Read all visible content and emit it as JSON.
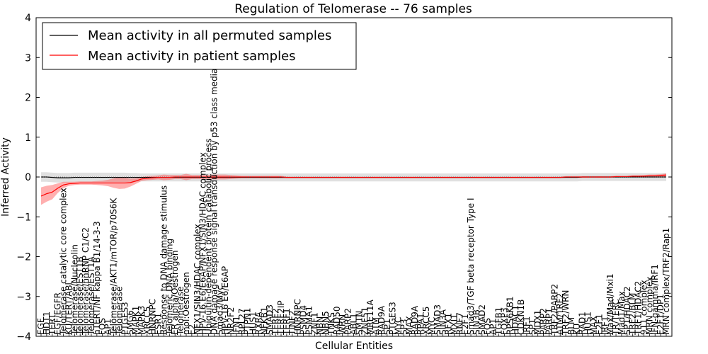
{
  "chart_data": {
    "type": "line",
    "title": "Regulation of Telomerase -- 76 samples",
    "xlabel": "Cellular Entities",
    "ylabel": "Inferred Activity",
    "ylim": [
      -4,
      4
    ],
    "yticks": [
      -4,
      -3,
      -2,
      -1,
      0,
      1,
      2,
      3,
      4
    ],
    "ytick_labels": [
      "−4",
      "−3",
      "−2",
      "−1",
      "0",
      "1",
      "2",
      "3",
      "4"
    ],
    "grid": false,
    "legend_position": "top-left",
    "series_colors": {
      "permuted": "#000000",
      "patient": "#ff0000",
      "permuted_band": "#bbbbbb",
      "patient_band": "#ff4d4d"
    },
    "categories": [
      "EGF",
      "HDT1",
      "TERT",
      "EGF/EGFR",
      "Telomerase catalytic core complex",
      "KU/TERT/ABl",
      "Telomerase/Nucleolin",
      "Telomerase/EST1B",
      "Telomerase/hnRNP C1/C2",
      "Telomerase/EST1A",
      "hTERT/NF kappa B1/14-3-3",
      "FOS",
      "AP1",
      "Telomerase/AKT1/mTOR/p70S6K",
      "Telomerase",
      "PTGES3",
      "SMG6",
      "MAPK1",
      "MAPK3",
      "XRCC5",
      "HNRNPC",
      "ESR1",
      "Response to DNA damage stimulus",
      "Telomeric DNA binding",
      "ER alpha/Oestrogen",
      "Telomerase",
      "mol:Oestrogen",
      "E2",
      "NFX1/SIN3/HDAC complex",
      "HPV-16 E6/E6AP/NFX1/SIN3/HDAC complex",
      "Ubiquitin-dependent protein catabolic process",
      "DNA damage response signal transduction by p53 class mediator",
      "Smad3/Myc",
      "HPV-16 E6/E6AP",
      "NR2F2",
      "IFN1",
      "RPL27",
      "PTPN1",
      "HUS1",
      "RXRA",
      "NFKB1",
      "SMAD3",
      "TERF2",
      "TERF2IP",
      "TERF1",
      "TINF2",
      "HNRNPC",
      "PSMD4",
      "PSMA1",
      "ZNF1",
      "NBN",
      "NBN5",
      "TNKS",
      "RAD50",
      "WRN",
      "PARP2",
      "ABL1",
      "SMTN",
      "ZNF51",
      "MRE11A",
      "ATM",
      "RAD9A",
      "SP1",
      "PTGES3",
      "MYC",
      "SP3",
      "MAX",
      "RAD9A",
      "RPA1",
      "XRCC5",
      "MYC",
      "SMAD3",
      "SIN3A",
      "RFX1",
      "MXI1",
      "RNF7",
      "E2F1",
      "Smad3/TGF beta receptor Type I",
      "SIN3B",
      "SMAD2",
      "FOS",
      "AP1",
      "TGFB1",
      "FOXP3",
      "RPS6KB1",
      "HDAC1",
      "CDKN1B",
      "IRF1",
      "SP1",
      "MDX1",
      "PARP2",
      "PARP1",
      "TRF2/PARP2",
      "ATM/TRF2",
      "TRF2/WRN",
      "BLM",
      "KU",
      "RAD1",
      "HUS1",
      "MAX",
      "E2F1",
      "IRF1",
      "Max/Mad/Mxi1",
      "TR/TERC",
      "Mad1/Max",
      "SP1/HDAC2",
      "TRF2/BLM",
      "TRF1/HDAC2",
      "911 complex",
      "MRN complex",
      "IFN-gamma/IRF1",
      "E2F1/DP1",
      "MRN complex/TRF2/Rap1"
    ],
    "series": [
      {
        "name": "Mean activity in all permuted samples",
        "values": [
          0.0,
          0.0,
          -0.01,
          -0.02,
          -0.02,
          -0.02,
          -0.01,
          -0.01,
          -0.01,
          -0.01,
          -0.01,
          -0.01,
          -0.01,
          -0.01,
          -0.01,
          -0.01,
          -0.01,
          -0.01,
          -0.01,
          -0.01,
          -0.01,
          -0.01,
          -0.01,
          -0.01,
          -0.01,
          -0.01,
          -0.01,
          -0.01,
          -0.01,
          -0.01,
          -0.01,
          -0.01,
          -0.01,
          -0.01,
          -0.01,
          -0.01,
          -0.01,
          -0.01,
          -0.01,
          -0.01,
          -0.01,
          -0.01,
          -0.01,
          -0.01,
          -0.01,
          -0.01,
          -0.01,
          -0.01,
          -0.01,
          -0.01,
          -0.01,
          -0.01,
          -0.01,
          -0.01,
          -0.01,
          -0.01,
          -0.01,
          -0.01,
          -0.01,
          -0.01,
          -0.01,
          -0.01,
          -0.01,
          -0.01,
          -0.01,
          -0.01,
          -0.01,
          -0.01,
          -0.01,
          -0.01,
          -0.01,
          -0.01,
          -0.01,
          -0.01,
          -0.01,
          -0.01,
          -0.01,
          -0.01,
          -0.01,
          -0.01,
          -0.01,
          -0.01,
          -0.01,
          -0.01,
          -0.01,
          -0.01,
          -0.01,
          -0.01,
          -0.01,
          -0.01,
          -0.01,
          -0.01,
          -0.01,
          -0.01,
          -0.01,
          -0.01,
          -0.01,
          0.0,
          0.0,
          0.0,
          0.0,
          0.0,
          0.0,
          0.0,
          0.0,
          0.0,
          0.0,
          0.0,
          0.0,
          0.0,
          0.0,
          0.0,
          0.0
        ],
        "band": [
          0.12,
          0.12,
          0.12,
          0.12,
          0.12,
          0.12,
          0.12,
          0.12,
          0.12,
          0.12,
          0.12,
          0.12,
          0.12,
          0.12,
          0.12,
          0.12,
          0.11,
          0.11,
          0.1,
          0.1,
          0.1,
          0.1,
          0.1,
          0.1,
          0.1,
          0.1,
          0.1,
          0.1,
          0.1,
          0.1,
          0.1,
          0.1,
          0.1,
          0.1,
          0.1,
          0.1,
          0.1,
          0.1,
          0.1,
          0.1,
          0.1,
          0.1,
          0.1,
          0.1,
          0.1,
          0.1,
          0.1,
          0.1,
          0.1,
          0.1,
          0.1,
          0.1,
          0.1,
          0.1,
          0.1,
          0.1,
          0.1,
          0.1,
          0.1,
          0.1,
          0.1,
          0.1,
          0.1,
          0.1,
          0.1,
          0.1,
          0.1,
          0.1,
          0.1,
          0.1,
          0.1,
          0.1,
          0.1,
          0.1,
          0.1,
          0.1,
          0.1,
          0.1,
          0.1,
          0.1,
          0.1,
          0.1,
          0.1,
          0.1,
          0.1,
          0.1,
          0.1,
          0.1,
          0.1,
          0.1,
          0.1,
          0.1,
          0.1,
          0.1,
          0.1,
          0.1,
          0.1,
          0.1,
          0.1,
          0.1,
          0.1,
          0.1,
          0.1,
          0.1,
          0.1,
          0.1,
          0.1,
          0.1,
          0.1,
          0.1,
          0.1,
          0.1,
          0.1
        ]
      },
      {
        "name": "Mean activity in patient samples",
        "values": [
          -0.48,
          -0.42,
          -0.38,
          -0.28,
          -0.2,
          -0.17,
          -0.16,
          -0.15,
          -0.15,
          -0.15,
          -0.15,
          -0.15,
          -0.15,
          -0.15,
          -0.15,
          -0.15,
          -0.14,
          -0.1,
          -0.05,
          -0.03,
          -0.02,
          -0.01,
          -0.01,
          -0.01,
          0.0,
          0.0,
          0.0,
          0.0,
          0.0,
          0.0,
          0.0,
          0.0,
          0.0,
          0.0,
          0.0,
          0.0,
          0.0,
          0.0,
          0.0,
          0.0,
          0.0,
          0.0,
          0.0,
          0.0,
          -0.01,
          -0.01,
          -0.01,
          -0.01,
          -0.01,
          -0.01,
          -0.01,
          -0.01,
          -0.01,
          -0.01,
          -0.01,
          -0.01,
          -0.01,
          -0.01,
          -0.01,
          -0.01,
          -0.01,
          -0.01,
          -0.01,
          -0.01,
          -0.01,
          -0.01,
          -0.01,
          -0.01,
          -0.01,
          -0.01,
          -0.01,
          -0.01,
          -0.01,
          -0.01,
          -0.01,
          -0.01,
          -0.01,
          -0.01,
          -0.01,
          -0.01,
          -0.01,
          -0.01,
          -0.01,
          -0.01,
          -0.01,
          -0.01,
          -0.01,
          -0.01,
          -0.01,
          -0.01,
          -0.01,
          -0.01,
          -0.01,
          -0.01,
          0.0,
          0.0,
          0.0,
          0.0,
          0.0,
          0.0,
          0.0,
          0.0,
          0.0,
          0.01,
          0.01,
          0.01,
          0.02,
          0.02,
          0.02,
          0.03,
          0.03,
          0.04,
          0.05
        ],
        "band": [
          0.22,
          0.2,
          0.18,
          0.12,
          0.08,
          0.05,
          0.04,
          0.04,
          0.04,
          0.04,
          0.05,
          0.06,
          0.08,
          0.12,
          0.15,
          0.14,
          0.1,
          0.07,
          0.05,
          0.05,
          0.05,
          0.05,
          0.07,
          0.06,
          0.05,
          0.05,
          0.08,
          0.05,
          0.05,
          0.05,
          0.05,
          0.06,
          0.06,
          0.06,
          0.05,
          0.04,
          0.03,
          0.03,
          0.03,
          0.03,
          0.03,
          0.03,
          0.03,
          0.03,
          0.02,
          0.02,
          0.02,
          0.02,
          0.02,
          0.02,
          0.02,
          0.02,
          0.02,
          0.02,
          0.02,
          0.02,
          0.02,
          0.02,
          0.02,
          0.02,
          0.02,
          0.02,
          0.02,
          0.02,
          0.02,
          0.02,
          0.02,
          0.02,
          0.02,
          0.02,
          0.02,
          0.02,
          0.02,
          0.02,
          0.02,
          0.02,
          0.02,
          0.02,
          0.02,
          0.02,
          0.02,
          0.02,
          0.02,
          0.02,
          0.02,
          0.02,
          0.02,
          0.02,
          0.02,
          0.02,
          0.02,
          0.02,
          0.02,
          0.02,
          0.02,
          0.02,
          0.02,
          0.02,
          0.02,
          0.02,
          0.02,
          0.02,
          0.02,
          0.02,
          0.02,
          0.02,
          0.02,
          0.02,
          0.03,
          0.03,
          0.03,
          0.03,
          0.04
        ]
      }
    ]
  }
}
